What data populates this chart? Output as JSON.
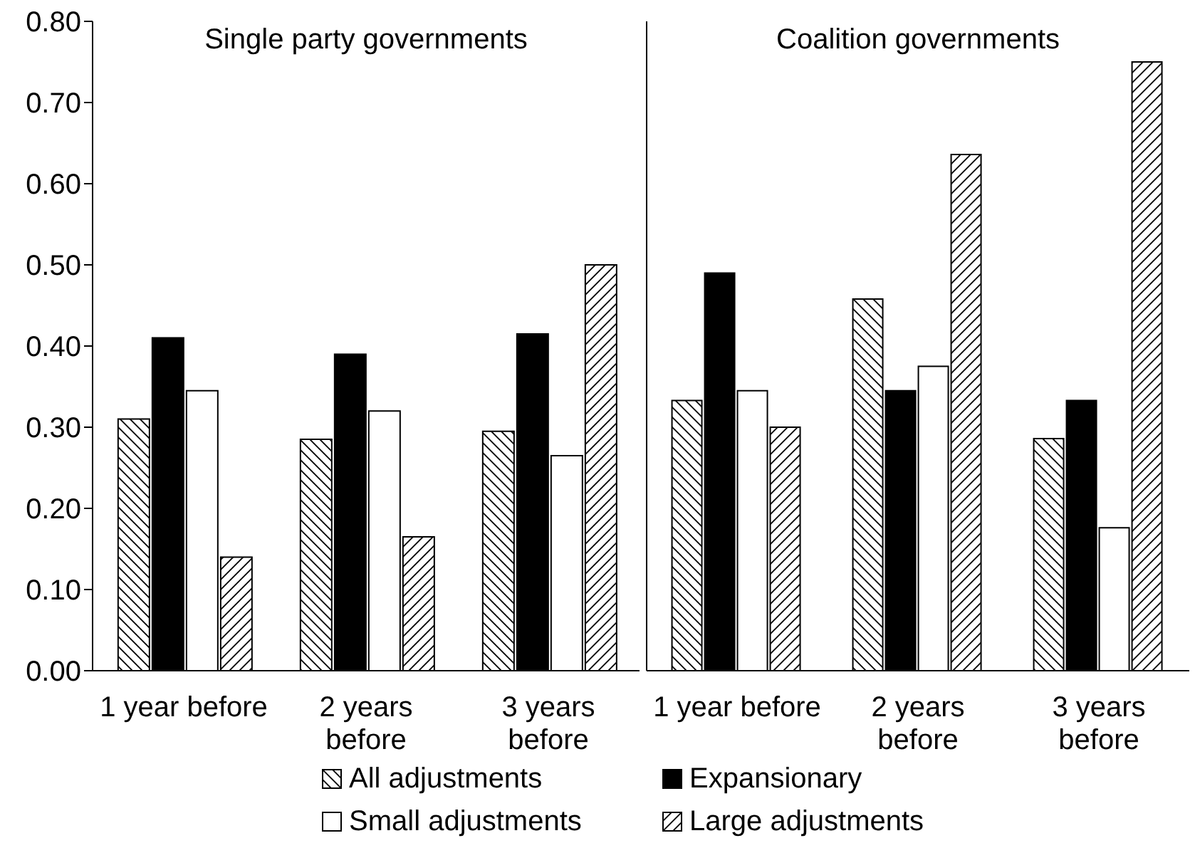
{
  "chart_data": [
    {
      "type": "bar",
      "title": "Single party governments",
      "categories": [
        "1 year before",
        "2 years before",
        "3 years before"
      ],
      "ylim": [
        0,
        0.8
      ],
      "yticks": [
        {
          "value": 0,
          "label": "0.00"
        },
        {
          "value": 0.1,
          "label": "0.10"
        },
        {
          "value": 0.2,
          "label": "0.20"
        },
        {
          "value": 0.3,
          "label": "0.30"
        },
        {
          "value": 0.4,
          "label": "0.40"
        },
        {
          "value": 0.5,
          "label": "0.50"
        },
        {
          "value": 0.6,
          "label": "0.60"
        },
        {
          "value": 0.7,
          "label": "0.70"
        },
        {
          "value": 0.8,
          "label": "0.80"
        }
      ],
      "legend": "bottom",
      "grid": false,
      "series": [
        {
          "name": "All adjustments",
          "color": "#000000",
          "values": [
            0.31,
            0.285,
            0.295
          ]
        },
        {
          "name": "Expansionary",
          "color": "#000000",
          "values": [
            0.41,
            0.39,
            0.415
          ]
        },
        {
          "name": "Small adjustments",
          "color": "#ffffff",
          "values": [
            0.345,
            0.32,
            0.265
          ]
        },
        {
          "name": "Large adjustments",
          "color": "#000000",
          "values": [
            0.14,
            0.165,
            0.5
          ]
        }
      ]
    },
    {
      "type": "bar",
      "title": "Coalition governments",
      "categories": [
        "1 year before",
        "2 years before",
        "3 years before"
      ],
      "ylim": [
        0,
        0.8
      ],
      "tick_labels": "x",
      "grid": false,
      "series": [
        {
          "color": "#000000",
          "values": [
            0.333,
            0.458,
            0.286
          ]
        },
        {
          "color": "#000000",
          "values": [
            0.49,
            0.345,
            0.333
          ]
        },
        {
          "color": "#ffffff",
          "values": [
            0.345,
            0.375,
            0.176
          ]
        },
        {
          "color": "#000000",
          "values": [
            0.3,
            0.636,
            0.75
          ]
        }
      ]
    }
  ]
}
